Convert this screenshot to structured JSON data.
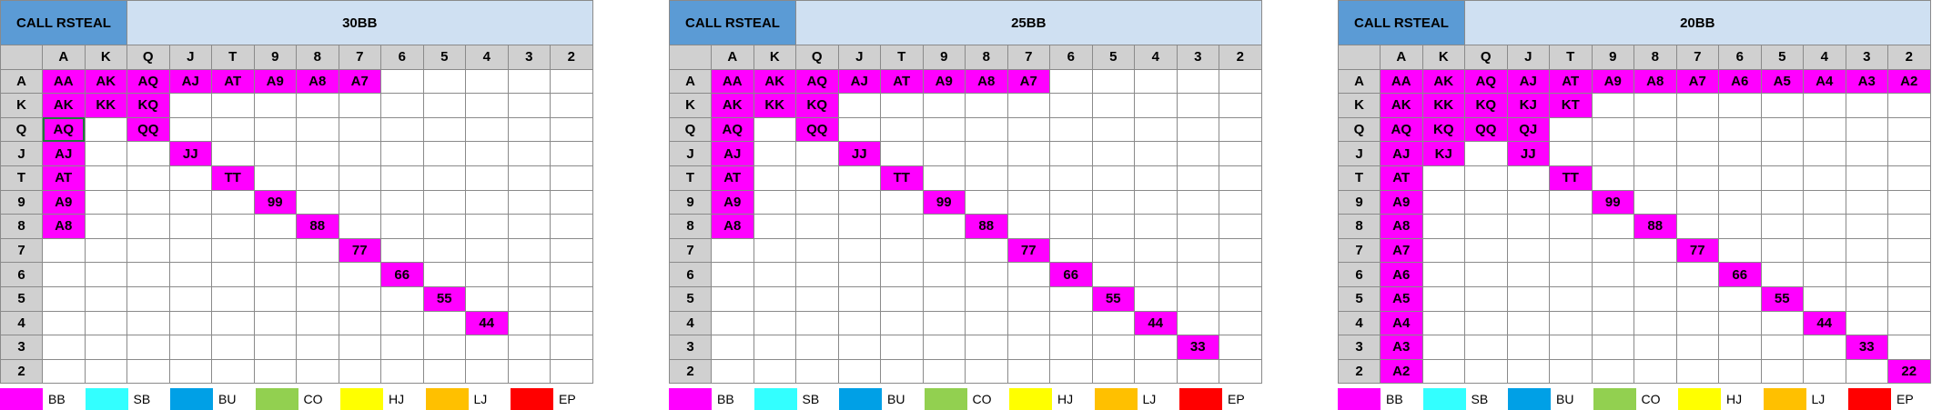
{
  "ranks": [
    "A",
    "K",
    "Q",
    "J",
    "T",
    "9",
    "8",
    "7",
    "6",
    "5",
    "4",
    "3",
    "2"
  ],
  "charts": [
    {
      "tag": "CALL RSTEAL",
      "stack": "30BB",
      "rows": [
        [
          "AA",
          "AK",
          "AQ",
          "AJ",
          "AT",
          "A9",
          "A8",
          "A7",
          "",
          "",
          "",
          "",
          ""
        ],
        [
          "AK",
          "KK",
          "KQ",
          "",
          "",
          "",
          "",
          "",
          "",
          "",
          "",
          "",
          ""
        ],
        [
          "AQ",
          "",
          "QQ",
          "",
          "",
          "",
          "",
          "",
          "",
          "",
          "",
          "",
          ""
        ],
        [
          "AJ",
          "",
          "",
          "JJ",
          "",
          "",
          "",
          "",
          "",
          "",
          "",
          "",
          ""
        ],
        [
          "AT",
          "",
          "",
          "",
          "TT",
          "",
          "",
          "",
          "",
          "",
          "",
          "",
          ""
        ],
        [
          "A9",
          "",
          "",
          "",
          "",
          "99",
          "",
          "",
          "",
          "",
          "",
          "",
          ""
        ],
        [
          "A8",
          "",
          "",
          "",
          "",
          "",
          "88",
          "",
          "",
          "",
          "",
          "",
          ""
        ],
        [
          "",
          "",
          "",
          "",
          "",
          "",
          "",
          "77",
          "",
          "",
          "",
          "",
          ""
        ],
        [
          "",
          "",
          "",
          "",
          "",
          "",
          "",
          "",
          "66",
          "",
          "",
          "",
          ""
        ],
        [
          "",
          "",
          "",
          "",
          "",
          "",
          "",
          "",
          "",
          "55",
          "",
          "",
          ""
        ],
        [
          "",
          "",
          "",
          "",
          "",
          "",
          "",
          "",
          "",
          "",
          "44",
          "",
          ""
        ],
        [
          "",
          "",
          "",
          "",
          "",
          "",
          "",
          "",
          "",
          "",
          "",
          "",
          ""
        ],
        [
          "",
          "",
          "",
          "",
          "",
          "",
          "",
          "",
          "",
          "",
          "",
          "",
          ""
        ]
      ]
    },
    {
      "tag": "CALL RSTEAL",
      "stack": "25BB",
      "rows": [
        [
          "AA",
          "AK",
          "AQ",
          "AJ",
          "AT",
          "A9",
          "A8",
          "A7",
          "",
          "",
          "",
          "",
          ""
        ],
        [
          "AK",
          "KK",
          "KQ",
          "",
          "",
          "",
          "",
          "",
          "",
          "",
          "",
          "",
          ""
        ],
        [
          "AQ",
          "",
          "QQ",
          "",
          "",
          "",
          "",
          "",
          "",
          "",
          "",
          "",
          ""
        ],
        [
          "AJ",
          "",
          "",
          "JJ",
          "",
          "",
          "",
          "",
          "",
          "",
          "",
          "",
          ""
        ],
        [
          "AT",
          "",
          "",
          "",
          "TT",
          "",
          "",
          "",
          "",
          "",
          "",
          "",
          ""
        ],
        [
          "A9",
          "",
          "",
          "",
          "",
          "99",
          "",
          "",
          "",
          "",
          "",
          "",
          ""
        ],
        [
          "A8",
          "",
          "",
          "",
          "",
          "",
          "88",
          "",
          "",
          "",
          "",
          "",
          ""
        ],
        [
          "",
          "",
          "",
          "",
          "",
          "",
          "",
          "77",
          "",
          "",
          "",
          "",
          ""
        ],
        [
          "",
          "",
          "",
          "",
          "",
          "",
          "",
          "",
          "66",
          "",
          "",
          "",
          ""
        ],
        [
          "",
          "",
          "",
          "",
          "",
          "",
          "",
          "",
          "",
          "55",
          "",
          "",
          ""
        ],
        [
          "",
          "",
          "",
          "",
          "",
          "",
          "",
          "",
          "",
          "",
          "44",
          "",
          ""
        ],
        [
          "",
          "",
          "",
          "",
          "",
          "",
          "",
          "",
          "",
          "",
          "",
          "33",
          ""
        ],
        [
          "",
          "",
          "",
          "",
          "",
          "",
          "",
          "",
          "",
          "",
          "",
          "",
          ""
        ]
      ]
    },
    {
      "tag": "CALL RSTEAL",
      "stack": "20BB",
      "rows": [
        [
          "AA",
          "AK",
          "AQ",
          "AJ",
          "AT",
          "A9",
          "A8",
          "A7",
          "A6",
          "A5",
          "A4",
          "A3",
          "A2"
        ],
        [
          "AK",
          "KK",
          "KQ",
          "KJ",
          "KT",
          "",
          "",
          "",
          "",
          "",
          "",
          "",
          ""
        ],
        [
          "AQ",
          "KQ",
          "QQ",
          "QJ",
          "",
          "",
          "",
          "",
          "",
          "",
          "",
          "",
          ""
        ],
        [
          "AJ",
          "KJ",
          "",
          "JJ",
          "",
          "",
          "",
          "",
          "",
          "",
          "",
          "",
          ""
        ],
        [
          "AT",
          "",
          "",
          "",
          "TT",
          "",
          "",
          "",
          "",
          "",
          "",
          "",
          ""
        ],
        [
          "A9",
          "",
          "",
          "",
          "",
          "99",
          "",
          "",
          "",
          "",
          "",
          "",
          ""
        ],
        [
          "A8",
          "",
          "",
          "",
          "",
          "",
          "88",
          "",
          "",
          "",
          "",
          "",
          ""
        ],
        [
          "A7",
          "",
          "",
          "",
          "",
          "",
          "",
          "77",
          "",
          "",
          "",
          "",
          ""
        ],
        [
          "A6",
          "",
          "",
          "",
          "",
          "",
          "",
          "",
          "66",
          "",
          "",
          "",
          ""
        ],
        [
          "A5",
          "",
          "",
          "",
          "",
          "",
          "",
          "",
          "",
          "55",
          "",
          "",
          ""
        ],
        [
          "A4",
          "",
          "",
          "",
          "",
          "",
          "",
          "",
          "",
          "",
          "44",
          "",
          ""
        ],
        [
          "A3",
          "",
          "",
          "",
          "",
          "",
          "",
          "",
          "",
          "",
          "",
          "33",
          ""
        ],
        [
          "A2",
          "",
          "",
          "",
          "",
          "",
          "",
          "",
          "",
          "",
          "",
          "",
          "22"
        ]
      ]
    }
  ],
  "legend": [
    {
      "label": "BB",
      "color": "#ff00ff"
    },
    {
      "label": "SB",
      "color": "#33ffff"
    },
    {
      "label": "BU",
      "color": "#00a0e6"
    },
    {
      "label": "CO",
      "color": "#92d050"
    },
    {
      "label": "HJ",
      "color": "#ffff00"
    },
    {
      "label": "LJ",
      "color": "#ffc000"
    },
    {
      "label": "EP",
      "color": "#ff0000"
    }
  ],
  "selected_cell": {
    "chart": 0,
    "row": 2,
    "col": 0
  }
}
